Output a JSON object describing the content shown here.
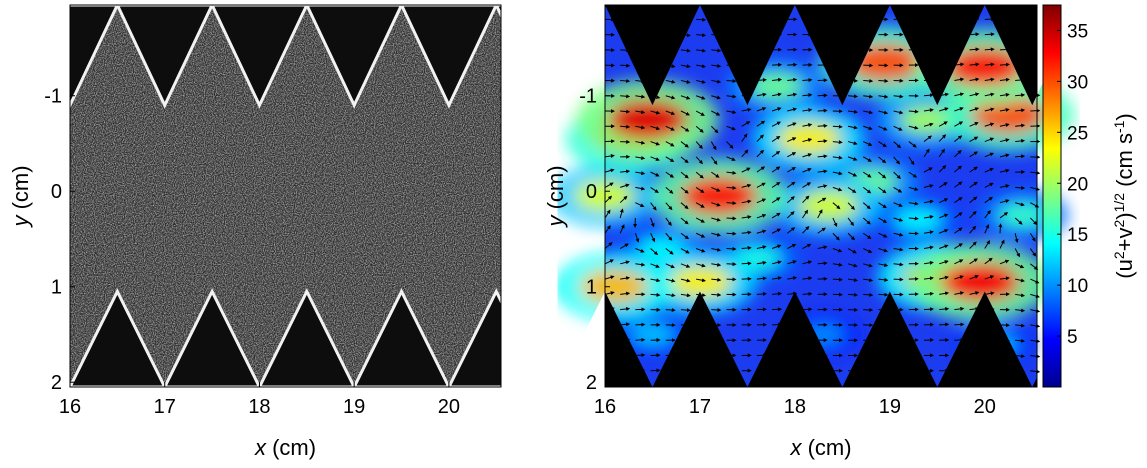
{
  "chart_data": [
    {
      "type": "image",
      "xlabel": {
        "var": "x",
        "unit": " (cm)"
      },
      "ylabel": {
        "var": "y",
        "unit": " (cm)"
      },
      "xlim": [
        16,
        20.55
      ],
      "ylim": [
        -1.95,
        2.05
      ],
      "y_reversed": true,
      "xticks": [
        16,
        17,
        18,
        19,
        20
      ],
      "xtick_labels": [
        "16",
        "17",
        "18",
        "19",
        "20"
      ],
      "yticks": [
        -1,
        0,
        1,
        2
      ],
      "ytick_labels": [
        "-1",
        "0",
        "1",
        "2"
      ],
      "background": "#0d0d0d",
      "wall_color": "#f2f2f2"
    },
    {
      "type": "heatmap",
      "xlabel": {
        "var": "x",
        "unit": " (cm)"
      },
      "ylabel": {
        "var": "y",
        "unit": " (cm)"
      },
      "xlim": [
        16,
        20.55
      ],
      "ylim": [
        -1.95,
        2.05
      ],
      "y_reversed": true,
      "xticks": [
        16,
        17,
        18,
        19,
        20
      ],
      "xtick_labels": [
        "16",
        "17",
        "18",
        "19",
        "20"
      ],
      "yticks": [
        -1,
        0,
        1,
        2
      ],
      "ytick_labels": [
        "-1",
        "0",
        "1",
        "2"
      ],
      "colormap": "jet",
      "colorbar": {
        "label_parts": [
          "(u",
          "2",
          "+v",
          "2",
          ")",
          "1/2",
          " (cm s",
          "-1",
          ")"
        ],
        "range": [
          0,
          37.5
        ],
        "ticks": [
          5,
          10,
          15,
          20,
          25,
          30,
          35
        ],
        "tick_labels": [
          "5",
          "10",
          "15",
          "20",
          "25",
          "30",
          "35"
        ]
      },
      "hotspots": [
        {
          "x": 16.45,
          "y": -0.75,
          "value": 34
        },
        {
          "x": 16.25,
          "y": -0.55,
          "value": 28
        },
        {
          "x": 17.2,
          "y": 0.05,
          "value": 32
        },
        {
          "x": 16.0,
          "y": 0.05,
          "value": 22
        },
        {
          "x": 18.15,
          "y": -0.55,
          "value": 24
        },
        {
          "x": 18.35,
          "y": 0.15,
          "value": 22
        },
        {
          "x": 19.95,
          "y": 0.95,
          "value": 33
        },
        {
          "x": 19.5,
          "y": 0.9,
          "value": 26
        },
        {
          "x": 20.25,
          "y": -0.8,
          "value": 30
        },
        {
          "x": 20.0,
          "y": -1.3,
          "value": 32
        },
        {
          "x": 18.95,
          "y": -1.35,
          "value": 30
        },
        {
          "x": 16.1,
          "y": 1.0,
          "value": 26
        },
        {
          "x": 17.0,
          "y": 0.95,
          "value": 24
        },
        {
          "x": 18.8,
          "y": -0.1,
          "value": 18
        },
        {
          "x": 19.4,
          "y": -0.75,
          "value": 20
        },
        {
          "x": 17.6,
          "y": 0.7,
          "value": 15
        },
        {
          "x": 16.6,
          "y": 0.6,
          "value": 14
        },
        {
          "x": 19.3,
          "y": 0.3,
          "value": 14
        },
        {
          "x": 20.4,
          "y": 0.25,
          "value": 16
        },
        {
          "x": 17.8,
          "y": -1.1,
          "value": 18
        },
        {
          "x": 16.5,
          "y": 1.5,
          "value": 12
        },
        {
          "x": 18.3,
          "y": 1.5,
          "value": 10
        },
        {
          "x": 20.1,
          "y": 1.6,
          "value": 12
        }
      ]
    }
  ]
}
